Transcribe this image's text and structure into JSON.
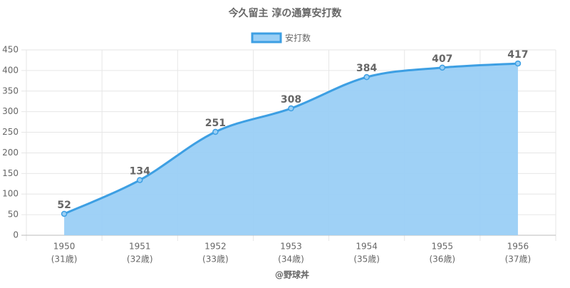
{
  "chart_data": {
    "type": "area",
    "title": "今久留主 淳の通算安打数",
    "categories": [
      "1950",
      "1951",
      "1952",
      "1953",
      "1954",
      "1955",
      "1956"
    ],
    "x_sublabels": [
      "(31歳)",
      "(32歳)",
      "(33歳)",
      "(34歳)",
      "(35歳)",
      "(36歳)",
      "(37歳)"
    ],
    "x_label": "@野球丼",
    "series": [
      {
        "name": "安打数",
        "color": "#3d9fe3",
        "fill": "#9acff5",
        "values": [
          52,
          134,
          251,
          308,
          384,
          407,
          417
        ]
      }
    ],
    "ylim": [
      0,
      450
    ],
    "yticks": [
      0,
      50,
      100,
      150,
      200,
      250,
      300,
      350,
      400,
      450
    ],
    "grid": true
  }
}
